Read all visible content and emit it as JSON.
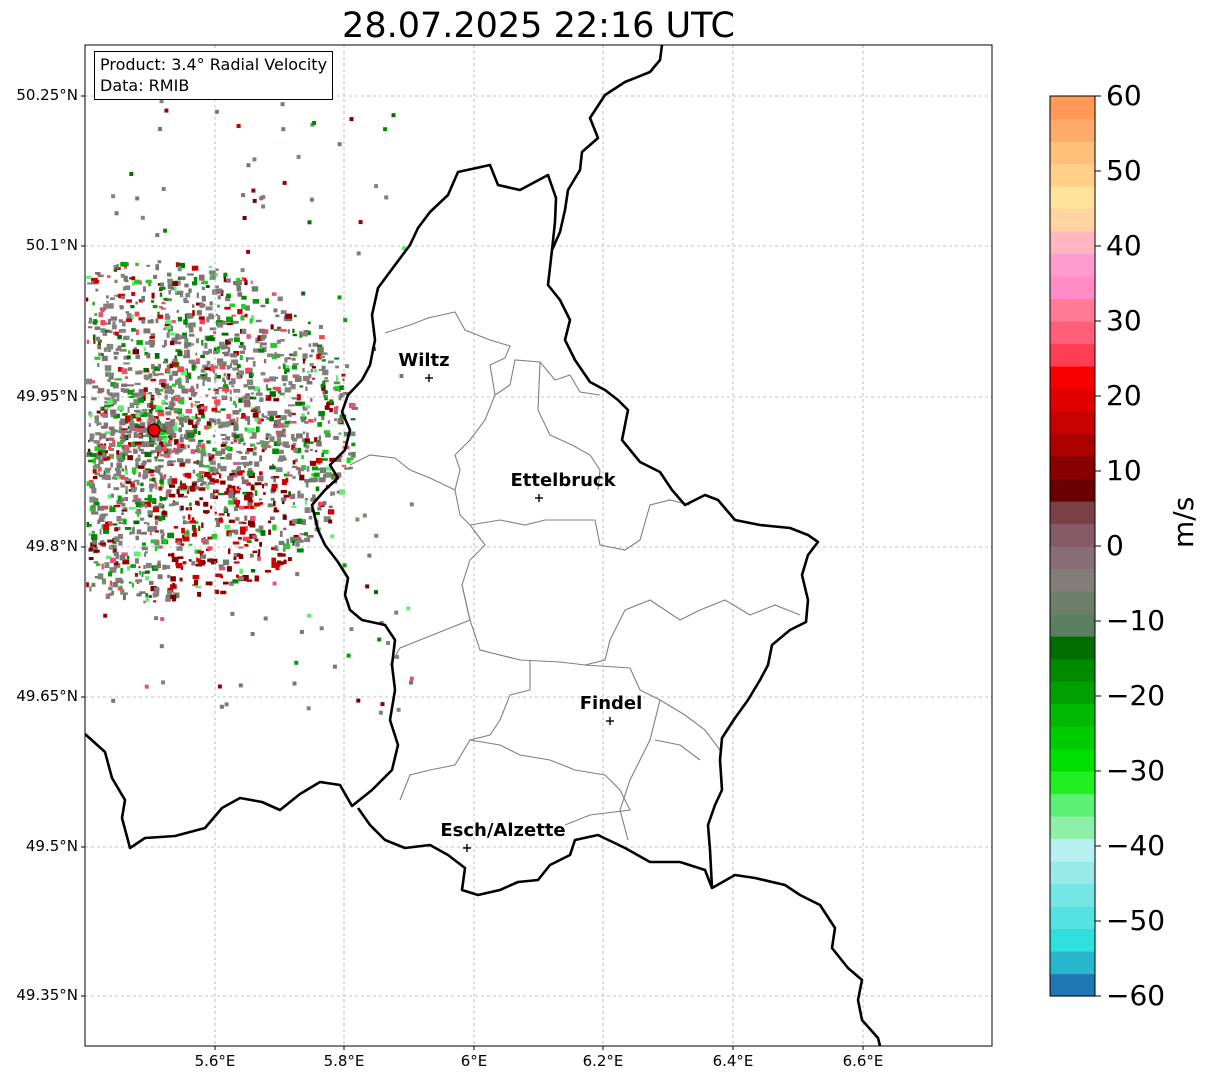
{
  "title": "28.07.2025 22:16 UTC",
  "info": {
    "product": "Product: 3.4° Radial Velocity",
    "data": "Data: RMIB"
  },
  "lat_ticks": [
    "50.25°N",
    "50.1°N",
    "49.95°N",
    "49.8°N",
    "49.65°N",
    "49.5°N",
    "49.35°N"
  ],
  "lon_ticks": [
    "5.6°E",
    "5.8°E",
    "6°E",
    "6.2°E",
    "6.4°E",
    "6.6°E"
  ],
  "cities": [
    {
      "name": "Wiltz"
    },
    {
      "name": "Ettelbruck"
    },
    {
      "name": "Findel"
    },
    {
      "name": "Esch/Alzette"
    }
  ],
  "colorbar": {
    "unit": "m/s",
    "ticks": [
      "60",
      "50",
      "40",
      "30",
      "20",
      "10",
      "0",
      "−10",
      "−20",
      "−30",
      "−40",
      "−50",
      "−60"
    ],
    "range": [
      -60,
      60
    ],
    "colors": [
      "#1f78b4",
      "#27b6cc",
      "#2ee0e0",
      "#55e2e2",
      "#77e6e6",
      "#98eaea",
      "#b6f0f0",
      "#8df0a8",
      "#5cf075",
      "#22ee22",
      "#00e000",
      "#00cc00",
      "#00b800",
      "#00a000",
      "#008a00",
      "#006e00",
      "#5a8060",
      "#6b7f6a",
      "#857d7b",
      "#876d76",
      "#865a66",
      "#7a4045",
      "#6a0000",
      "#880000",
      "#aa0000",
      "#c80000",
      "#e00000",
      "#f80000",
      "#ff3d55",
      "#ff5f78",
      "#ff7a95",
      "#ff8cc6",
      "#ff9ccf",
      "#ffb6c0",
      "#ffd4a0",
      "#ffe39a",
      "#ffd08a",
      "#ffc07a",
      "#ffaa68",
      "#ff9955"
    ]
  },
  "radar_site_color": "#ee0000",
  "grid_color": "#b0b0b0"
}
